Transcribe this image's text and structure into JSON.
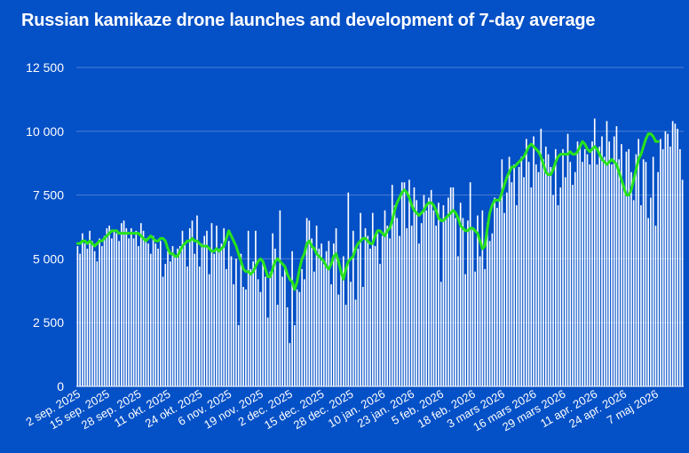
{
  "chart_data": {
    "type": "bar",
    "title": "Russian kamikaze drone launches and development of 7-day average",
    "ylim": [
      0,
      12500
    ],
    "y_ticks": [
      "0",
      "2 500",
      "5 000",
      "7 500",
      "10 000",
      "12 500"
    ],
    "y_tick_values": [
      0,
      2500,
      5000,
      7500,
      10000,
      12500
    ],
    "x_tick_labels": [
      "2 sep. 2025",
      "15 sep. 2025",
      "28 sep. 2025",
      "11 okt. 2025",
      "24 okt. 2025",
      "6 nov. 2025",
      "19 nov. 2025",
      "2 dec. 2025",
      "15 dec. 2025",
      "28 dec. 2025",
      "10 jan. 2026",
      "23 jan. 2026",
      "5 feb. 2026",
      "18 feb. 2026",
      "3 mars 2026",
      "16 mars 2026",
      "29 mars 2026",
      "11 apr. 2026",
      "24 apr. 2026",
      "7 maj 2026"
    ],
    "grid": true,
    "colors": {
      "background": "#0450c6",
      "bars": "#ffffff",
      "average": "#27e31c",
      "grid": "#4a7fd6"
    },
    "series": [
      {
        "type": "bar",
        "values": [
          5500,
          5200,
          6000,
          5600,
          5400,
          6100,
          5700,
          5300,
          4900,
          5800,
          5500,
          5900,
          6200,
          6300,
          5800,
          6100,
          6000,
          5700,
          6400,
          6500,
          6200,
          5800,
          6200,
          5800,
          6100,
          5500,
          6400,
          6100,
          5800,
          5600,
          5200,
          5900,
          5600,
          5400,
          5700,
          4300,
          4800,
          5300,
          4900,
          5500,
          5100,
          5400,
          5500,
          6100,
          5600,
          4700,
          6200,
          6500,
          5200,
          6700,
          4700,
          5600,
          5900,
          6100,
          4400,
          6400,
          5200,
          6300,
          5400,
          5600,
          6200,
          4600,
          5700,
          5100,
          4000,
          5000,
          2400,
          5200,
          3900,
          3800,
          6100,
          4600,
          4900,
          6100,
          4200,
          3700,
          4900,
          4300,
          2700,
          4500,
          6000,
          5400,
          3200,
          6900,
          4300,
          4700,
          3100,
          1700,
          5300,
          2400,
          3800,
          3700,
          4600,
          4200,
          6600,
          6500,
          5800,
          4500,
          6300,
          5400,
          5600,
          4800,
          5300,
          5700,
          4000,
          5600,
          6200,
          3600,
          4600,
          5100,
          3200,
          7600,
          4100,
          6100,
          3400,
          5400,
          6800,
          3900,
          6200,
          5900,
          5400,
          6800,
          5500,
          6000,
          4800,
          5900,
          6900,
          6300,
          5800,
          7900,
          7100,
          6600,
          5900,
          8000,
          8000,
          6200,
          8100,
          6300,
          7800,
          7300,
          5600,
          6400,
          7500,
          6900,
          7400,
          7700,
          6900,
          6300,
          7200,
          4100,
          7100,
          6600,
          7400,
          7800,
          7800,
          6600,
          5100,
          7200,
          6600,
          4400,
          6500,
          8000,
          6200,
          4500,
          6700,
          5100,
          6900,
          4600,
          6400,
          5700,
          6000,
          7400,
          7000,
          7400,
          8900,
          6800,
          7600,
          9000,
          8000,
          8700,
          7100,
          8600,
          9000,
          8200,
          9700,
          8800,
          7800,
          9800,
          8700,
          8400,
          10100,
          8900,
          9400,
          9100,
          8600,
          7500,
          9300,
          7100,
          7800,
          9300,
          8200,
          9900,
          8800,
          7900,
          8400,
          9600,
          9400,
          8800,
          9300,
          9100,
          8700,
          9600,
          10500,
          8700,
          9400,
          9800,
          9000,
          10400,
          9600,
          8700,
          9800,
          10200,
          8900,
          9500,
          7900,
          9200,
          9300,
          8400,
          7300,
          9100,
          9700,
          7100,
          8900,
          8800,
          6600,
          7400,
          9000,
          6300,
          8400,
          9700,
          9300,
          10000,
          9900,
          9400,
          10400,
          10300,
          10100,
          9300,
          8100
        ]
      },
      {
        "type": "line",
        "name": "7-day average",
        "values": [
          5600,
          5600,
          5700,
          5700,
          5600,
          5700,
          5600,
          5500,
          5600,
          5700,
          5700,
          5800,
          5900,
          6000,
          6100,
          6100,
          6100,
          6000,
          6000,
          6000,
          6000,
          6000,
          6000,
          6000,
          6000,
          6000,
          5900,
          5800,
          5700,
          5800,
          5900,
          5800,
          5700,
          5700,
          5800,
          5800,
          5700,
          5400,
          5200,
          5200,
          5100,
          5100,
          5300,
          5500,
          5600,
          5700,
          5700,
          5800,
          5700,
          5700,
          5600,
          5500,
          5500,
          5500,
          5400,
          5300,
          5300,
          5400,
          5300,
          5400,
          5500,
          5800,
          6100,
          5900,
          5700,
          5500,
          5200,
          4900,
          4600,
          4500,
          4500,
          4400,
          4500,
          4700,
          4900,
          5000,
          4900,
          4600,
          4300,
          4300,
          4600,
          4900,
          5000,
          4900,
          4800,
          4700,
          4400,
          4200,
          4100,
          3800,
          4100,
          4600,
          5000,
          5200,
          5600,
          5700,
          5500,
          5400,
          5200,
          5100,
          5000,
          4900,
          4700,
          4600,
          4800,
          5100,
          5200,
          4900,
          4500,
          4200,
          4600,
          4900,
          5000,
          5100,
          5400,
          5600,
          5700,
          5800,
          5800,
          5700,
          5600,
          5600,
          5900,
          6100,
          6100,
          6000,
          5900,
          6100,
          6200,
          6500,
          6900,
          7200,
          7400,
          7600,
          7700,
          7600,
          7400,
          7100,
          6900,
          6800,
          6700,
          6800,
          6900,
          7100,
          7200,
          7200,
          7100,
          6900,
          6600,
          6500,
          6500,
          6600,
          6700,
          6800,
          6900,
          6800,
          6600,
          6300,
          6200,
          6100,
          6100,
          6200,
          6200,
          6100,
          6000,
          5700,
          5400,
          5500,
          6200,
          6800,
          7100,
          7300,
          7300,
          7300,
          7600,
          7900,
          8200,
          8400,
          8600,
          8600,
          8700,
          8800,
          8900,
          9000,
          9200,
          9400,
          9500,
          9400,
          9300,
          9200,
          9000,
          8700,
          8400,
          8300,
          8300,
          8500,
          8800,
          9000,
          9100,
          9100,
          9100,
          9100,
          9200,
          9100,
          9100,
          9200,
          9400,
          9600,
          9500,
          9300,
          9200,
          9300,
          9400,
          9300,
          9100,
          8900,
          8800,
          8700,
          8800,
          8900,
          8800,
          8700,
          8400,
          8100,
          7800,
          7500,
          7500,
          7700,
          8100,
          8500,
          8900,
          9100,
          9400,
          9700,
          9900,
          9900,
          9800,
          9600,
          9600
        ]
      }
    ]
  }
}
